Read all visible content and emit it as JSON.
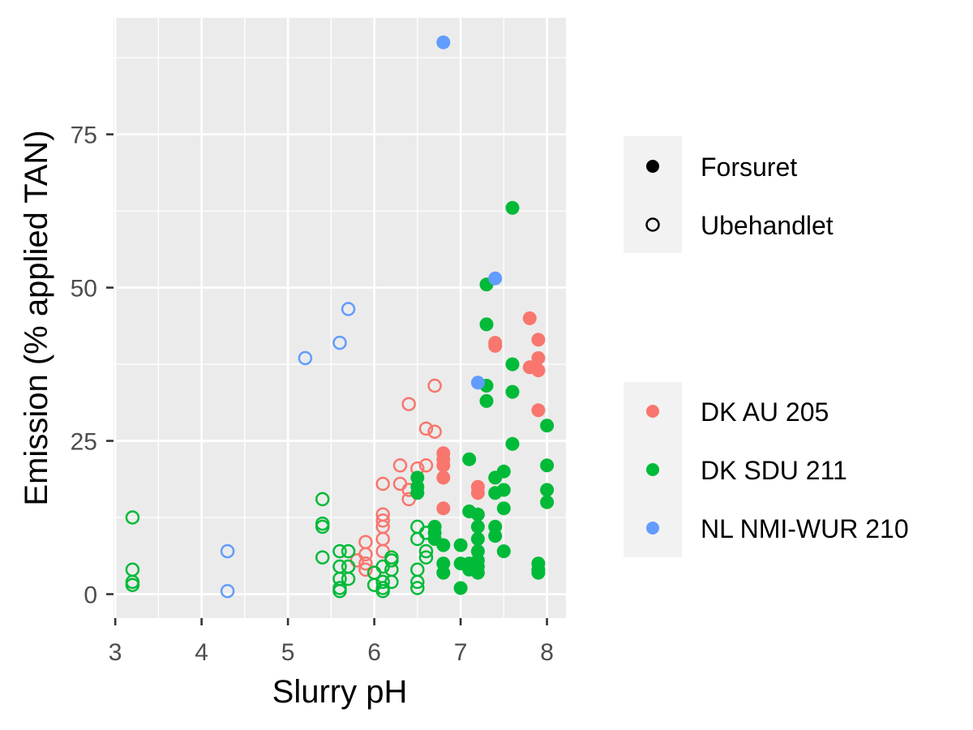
{
  "chart_data": {
    "type": "scatter",
    "xlabel": "Slurry pH",
    "ylabel": "Emission (% applied TAN)",
    "xlim": [
      2.98,
      8.22
    ],
    "ylim": [
      -3.9,
      94
    ],
    "xticks": [
      3,
      4,
      5,
      6,
      7,
      8
    ],
    "yticks": [
      0,
      25,
      50,
      75
    ],
    "grid": true,
    "legend_placement": "right",
    "shape_legend": [
      {
        "label": "Forsuret",
        "filled": true
      },
      {
        "label": "Ubehandlet",
        "filled": false
      }
    ],
    "color_legend": [
      {
        "label": "DK AU 205",
        "color": "#F8766D"
      },
      {
        "label": "DK SDU 211",
        "color": "#00BA38"
      },
      {
        "label": "NL NMI-WUR 210",
        "color": "#619CFF"
      }
    ],
    "series": [
      {
        "name": "DK AU 205",
        "treatment": "Forsuret",
        "filled": true,
        "color": "#F8766D",
        "points": [
          [
            6.8,
            23.0
          ],
          [
            6.8,
            22.0
          ],
          [
            6.8,
            21.0
          ],
          [
            6.8,
            19.0
          ],
          [
            6.8,
            14.0
          ],
          [
            7.2,
            16.5
          ],
          [
            7.2,
            17.5
          ],
          [
            7.4,
            40.5
          ],
          [
            7.4,
            41.0
          ],
          [
            7.8,
            45.0
          ],
          [
            7.8,
            37.0
          ],
          [
            7.9,
            41.5
          ],
          [
            7.9,
            38.5
          ],
          [
            7.9,
            36.5
          ],
          [
            7.9,
            30.0
          ]
        ]
      },
      {
        "name": "DK AU 205",
        "treatment": "Ubehandlet",
        "filled": false,
        "color": "#F8766D",
        "points": [
          [
            5.8,
            5.5
          ],
          [
            5.9,
            8.5
          ],
          [
            5.9,
            6.5
          ],
          [
            5.9,
            5.0
          ],
          [
            5.9,
            4.0
          ],
          [
            6.0,
            3.5
          ],
          [
            6.1,
            18.0
          ],
          [
            6.1,
            13.0
          ],
          [
            6.1,
            12.0
          ],
          [
            6.1,
            11.0
          ],
          [
            6.1,
            9.0
          ],
          [
            6.1,
            7.0
          ],
          [
            6.3,
            21.0
          ],
          [
            6.3,
            18.0
          ],
          [
            6.4,
            31.0
          ],
          [
            6.4,
            17.0
          ],
          [
            6.4,
            15.5
          ],
          [
            6.5,
            20.5
          ],
          [
            6.6,
            27.0
          ],
          [
            6.6,
            21.0
          ],
          [
            6.7,
            34.0
          ],
          [
            6.7,
            26.5
          ]
        ]
      },
      {
        "name": "DK SDU 211",
        "treatment": "Forsuret",
        "filled": true,
        "color": "#00BA38",
        "points": [
          [
            6.5,
            19.0
          ],
          [
            6.5,
            17.5
          ],
          [
            6.5,
            16.5
          ],
          [
            6.7,
            11.0
          ],
          [
            6.7,
            10.0
          ],
          [
            6.7,
            9.0
          ],
          [
            6.8,
            8.0
          ],
          [
            6.8,
            5.0
          ],
          [
            6.8,
            3.5
          ],
          [
            7.0,
            8.0
          ],
          [
            7.0,
            5.0
          ],
          [
            7.0,
            1.0
          ],
          [
            7.1,
            22.0
          ],
          [
            7.1,
            13.5
          ],
          [
            7.1,
            5.0
          ],
          [
            7.1,
            4.0
          ],
          [
            7.2,
            13.0
          ],
          [
            7.2,
            11.0
          ],
          [
            7.2,
            9.0
          ],
          [
            7.2,
            7.0
          ],
          [
            7.2,
            5.5
          ],
          [
            7.2,
            4.5
          ],
          [
            7.2,
            3.5
          ],
          [
            7.3,
            50.5
          ],
          [
            7.3,
            44.0
          ],
          [
            7.3,
            34.0
          ],
          [
            7.3,
            31.5
          ],
          [
            7.4,
            19.0
          ],
          [
            7.4,
            16.5
          ],
          [
            7.4,
            11.0
          ],
          [
            7.4,
            9.5
          ],
          [
            7.5,
            20.0
          ],
          [
            7.5,
            17.0
          ],
          [
            7.5,
            14.0
          ],
          [
            7.5,
            7.0
          ],
          [
            7.6,
            63.0
          ],
          [
            7.6,
            37.5
          ],
          [
            7.6,
            33.0
          ],
          [
            7.6,
            24.5
          ],
          [
            7.9,
            5.0
          ],
          [
            7.9,
            4.0
          ],
          [
            7.9,
            3.5
          ],
          [
            8.0,
            27.5
          ],
          [
            8.0,
            21.0
          ],
          [
            8.0,
            17.0
          ],
          [
            8.0,
            15.0
          ]
        ]
      },
      {
        "name": "DK SDU 211",
        "treatment": "Ubehandlet",
        "filled": false,
        "color": "#00BA38",
        "points": [
          [
            3.2,
            12.5
          ],
          [
            3.2,
            4.0
          ],
          [
            3.2,
            2.0
          ],
          [
            3.2,
            1.5
          ],
          [
            5.4,
            15.5
          ],
          [
            5.4,
            11.5
          ],
          [
            5.4,
            11.0
          ],
          [
            5.4,
            6.0
          ],
          [
            5.6,
            7.0
          ],
          [
            5.6,
            4.5
          ],
          [
            5.6,
            2.5
          ],
          [
            5.6,
            1.0
          ],
          [
            5.6,
            0.5
          ],
          [
            5.7,
            7.0
          ],
          [
            5.7,
            4.5
          ],
          [
            5.7,
            2.5
          ],
          [
            6.0,
            3.5
          ],
          [
            6.0,
            1.5
          ],
          [
            6.1,
            4.5
          ],
          [
            6.1,
            2.0
          ],
          [
            6.1,
            1.0
          ],
          [
            6.1,
            0.5
          ],
          [
            6.2,
            6.0
          ],
          [
            6.2,
            5.5
          ],
          [
            6.2,
            4.0
          ],
          [
            6.2,
            2.0
          ],
          [
            6.5,
            11.0
          ],
          [
            6.5,
            9.0
          ],
          [
            6.5,
            4.0
          ],
          [
            6.5,
            2.0
          ],
          [
            6.5,
            1.0
          ],
          [
            6.6,
            10.0
          ],
          [
            6.6,
            7.0
          ],
          [
            6.6,
            6.0
          ]
        ]
      },
      {
        "name": "NL NMI-WUR 210",
        "treatment": "Forsuret",
        "filled": true,
        "color": "#619CFF",
        "points": [
          [
            6.8,
            90.0
          ],
          [
            7.4,
            51.5
          ],
          [
            7.2,
            34.5
          ]
        ]
      },
      {
        "name": "NL NMI-WUR 210",
        "treatment": "Ubehandlet",
        "filled": false,
        "color": "#619CFF",
        "points": [
          [
            4.3,
            7.0
          ],
          [
            4.3,
            0.5
          ],
          [
            5.2,
            38.5
          ],
          [
            5.6,
            41.0
          ],
          [
            5.7,
            46.5
          ]
        ]
      }
    ]
  }
}
